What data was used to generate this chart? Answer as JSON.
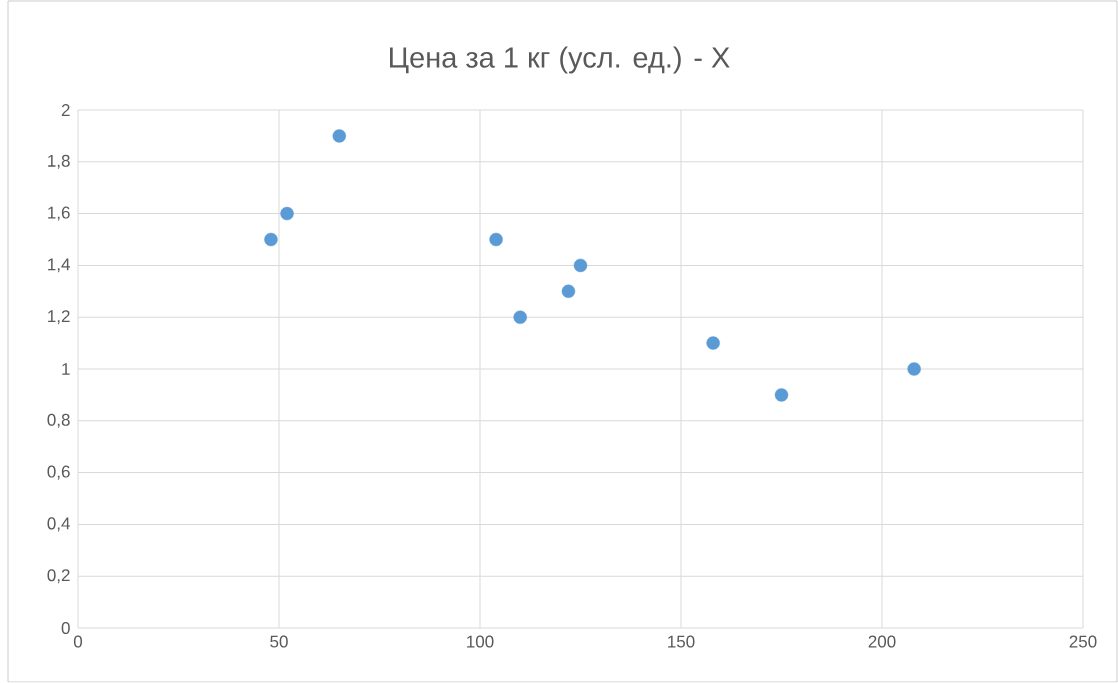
{
  "chart_data": {
    "type": "scatter",
    "title": "Цена за 1 кг (усл. ед.) - X",
    "x": [
      48,
      52,
      65,
      104,
      110,
      122,
      125,
      158,
      175,
      208
    ],
    "values": [
      1.5,
      1.6,
      1.9,
      1.5,
      1.2,
      1.3,
      1.4,
      1.1,
      0.9,
      1.0
    ],
    "color": "#5b9bd5",
    "marker": "circle",
    "xlim": [
      0,
      250
    ],
    "xticks": [
      0,
      50,
      100,
      150,
      200,
      250
    ],
    "ylim": [
      0,
      2
    ],
    "yticks": [
      0,
      {
        "value": 0.2,
        "label": "0,2"
      },
      {
        "value": 0.4,
        "label": "0,4"
      },
      {
        "value": 0.6,
        "label": "0,6"
      },
      {
        "value": 0.8,
        "label": "0,8"
      },
      1,
      {
        "value": 1.2,
        "label": "1,2"
      },
      {
        "value": 1.4,
        "label": "1,4"
      },
      {
        "value": 1.6,
        "label": "1,6"
      },
      {
        "value": 1.8,
        "label": "1,8"
      },
      2
    ],
    "grid": true
  }
}
